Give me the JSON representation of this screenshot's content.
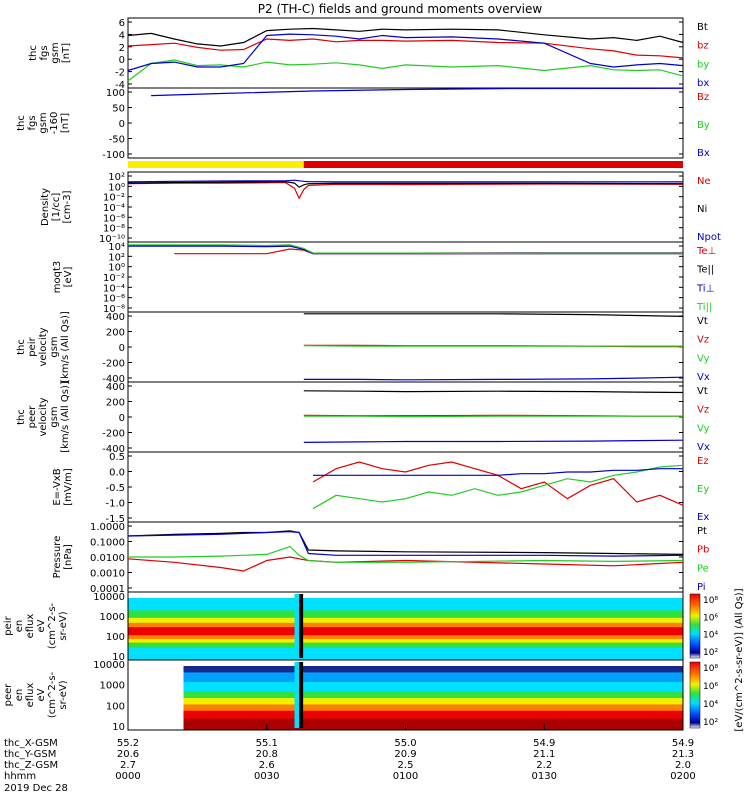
{
  "title": "P2 (TH-C) fields and ground moments overview",
  "date": "2019 Dec 28",
  "colors": {
    "black": "#000000",
    "red": "#dd0000",
    "green": "#22cc22",
    "blue": "#0000cc",
    "yellow": "#ffee00"
  },
  "xaxis": {
    "row_labels": [
      "thc_X-GSM",
      "thc_Y-GSM",
      "thc_Z-GSM",
      "hhmm"
    ],
    "ticks": [
      {
        "x": "55.2",
        "y": "20.6",
        "z": "2.7",
        "t": "0000"
      },
      {
        "x": "55.1",
        "y": "20.8",
        "z": "2.6",
        "t": "0030"
      },
      {
        "x": "55.0",
        "y": "20.9",
        "z": "2.5",
        "t": "0100"
      },
      {
        "x": "54.9",
        "y": "21.1",
        "z": "2.2",
        "t": "0130"
      },
      {
        "x": "54.9",
        "y": "21.3",
        "z": "2.0",
        "t": "0200"
      }
    ]
  },
  "mode_bar": {
    "yellow_until_hhmm": "0038",
    "red_after_hhmm": "0038"
  },
  "panels": [
    {
      "id": "fgs-gsm",
      "ylabel": [
        "thc",
        "fgs",
        "gsm",
        "[nT]"
      ],
      "yticks": [
        "6",
        "4",
        "2",
        "0",
        "-2",
        "-4"
      ],
      "legend": [
        {
          "text": "Bt",
          "color": "#000000"
        },
        {
          "text": "bz",
          "color": "#dd0000"
        },
        {
          "text": "by",
          "color": "#22cc22"
        },
        {
          "text": "bx",
          "color": "#0000cc"
        }
      ]
    },
    {
      "id": "fgs-gsm-160",
      "ylabel": [
        "thc",
        "fgs",
        "gsm",
        "-160",
        "[nT]"
      ],
      "yticks": [
        "100",
        "50",
        "0",
        "-50",
        "-100"
      ],
      "legend": [
        {
          "text": "Bz",
          "color": "#dd0000"
        },
        {
          "text": "By",
          "color": "#22cc22"
        },
        {
          "text": "Bx",
          "color": "#0000cc"
        }
      ]
    },
    {
      "id": "density",
      "ylabel": [
        "Density",
        "[1/cc]",
        "[cm-3]"
      ],
      "yticks": [
        "10²",
        "10⁰",
        "10⁻²",
        "10⁻⁴",
        "10⁻⁶",
        "10⁻⁸",
        "10⁻¹⁰"
      ],
      "legend": [
        {
          "text": "Ne",
          "color": "#dd0000"
        },
        {
          "text": "Ni",
          "color": "#000000"
        },
        {
          "text": "Npot",
          "color": "#0000cc"
        }
      ]
    },
    {
      "id": "temperature",
      "ylabel": [
        "moqt3",
        "[eV]"
      ],
      "yticks": [
        "10⁴",
        "10²",
        "10⁰",
        "10⁻²",
        "10⁻⁴",
        "10⁻⁶",
        "10⁻⁸"
      ],
      "legend": [
        {
          "text": "Te⊥",
          "color": "#dd0000"
        },
        {
          "text": "Te||",
          "color": "#000000"
        },
        {
          "text": "Ti⊥",
          "color": "#0000cc"
        },
        {
          "text": "Ti||",
          "color": "#22cc22"
        }
      ]
    },
    {
      "id": "peir-velocity",
      "ylabel": [
        "thc",
        "peir",
        "velocity",
        "gsm",
        "[km/s (All Qs)]"
      ],
      "yticks": [
        "400",
        "200",
        "0",
        "-200",
        "-400"
      ],
      "legend": [
        {
          "text": "Vt",
          "color": "#000000"
        },
        {
          "text": "Vz",
          "color": "#dd0000"
        },
        {
          "text": "Vy",
          "color": "#22cc22"
        },
        {
          "text": "Vx",
          "color": "#0000cc"
        }
      ]
    },
    {
      "id": "peer-velocity",
      "ylabel": [
        "thc",
        "peer",
        "velocity",
        "gsm",
        "[km/s (All Qs)]"
      ],
      "yticks": [
        "400",
        "200",
        "0",
        "-200",
        "-400"
      ],
      "legend": [
        {
          "text": "Vt",
          "color": "#000000"
        },
        {
          "text": "Vz",
          "color": "#dd0000"
        },
        {
          "text": "Vy",
          "color": "#22cc22"
        },
        {
          "text": "Vx",
          "color": "#0000cc"
        }
      ]
    },
    {
      "id": "efield",
      "ylabel": [
        "E=-VxB",
        "[mV/m]"
      ],
      "yticks": [
        "0.5",
        "0.0",
        "-0.5",
        "-1.0",
        "-1.5"
      ],
      "legend": [
        {
          "text": "Ez",
          "color": "#dd0000"
        },
        {
          "text": "Ey",
          "color": "#22cc22"
        },
        {
          "text": "Ex",
          "color": "#0000cc"
        }
      ]
    },
    {
      "id": "pressure",
      "ylabel": [
        "Pressure",
        "[nPa]"
      ],
      "yticks": [
        "1.0000",
        "0.1000",
        "0.0100",
        "0.0010",
        "0.0001"
      ],
      "legend": [
        {
          "text": "Pt",
          "color": "#000000"
        },
        {
          "text": "Pb",
          "color": "#dd0000"
        },
        {
          "text": "Pe",
          "color": "#22cc22"
        },
        {
          "text": "Pi",
          "color": "#0000cc"
        }
      ]
    },
    {
      "id": "peir-spectrogram",
      "ylabel": [
        "thc",
        "peir",
        "en",
        "eflux",
        "eV",
        "(cm^2-s-",
        "sr-eV)"
      ],
      "yticks": [
        "10000",
        "1000",
        "100",
        "10"
      ],
      "colorbar": [
        "10⁸",
        "10⁶",
        "10⁴",
        "10²"
      ]
    },
    {
      "id": "peer-spectrogram",
      "ylabel": [
        "thc",
        "peer",
        "en",
        "eflux",
        "eV",
        "(cm^2-s-",
        "sr-eV)"
      ],
      "yticks": [
        "10000",
        "1000",
        "100",
        "10"
      ],
      "colorbar": [
        "10⁸",
        "10⁶",
        "10⁴",
        "10²"
      ]
    }
  ],
  "colorbar_label": "[eV/(cm^2-s-sr-eV)] (All Qs)]",
  "chart_data": [
    {
      "type": "line",
      "id": "fgs-gsm",
      "x_unit": "hhmm",
      "ylim": [
        -4,
        6
      ],
      "x": [
        "0000",
        "0005",
        "0010",
        "0015",
        "0020",
        "0025",
        "0030",
        "0035",
        "0040",
        "0045",
        "0050",
        "0055",
        "0100",
        "0110",
        "0120",
        "0130",
        "0140",
        "0145",
        "0150",
        "0155",
        "0200"
      ],
      "series": [
        {
          "name": "Bt",
          "values": [
            3.5,
            3.8,
            3.0,
            2.3,
            2.0,
            2.5,
            4.2,
            4.4,
            4.5,
            4.3,
            4.1,
            4.4,
            4.3,
            4.4,
            4.3,
            3.6,
            3.0,
            3.2,
            2.8,
            3.4,
            2.5
          ]
        },
        {
          "name": "bz",
          "values": [
            2.0,
            2.2,
            2.4,
            1.8,
            1.4,
            1.5,
            3.0,
            2.8,
            3.0,
            2.6,
            2.8,
            2.8,
            2.7,
            2.8,
            2.5,
            2.4,
            1.6,
            1.3,
            0.7,
            0.6,
            0.3
          ]
        },
        {
          "name": "by",
          "values": [
            -3.0,
            -0.5,
            0.0,
            -0.8,
            -0.7,
            -1.0,
            -0.3,
            -0.7,
            -0.6,
            -0.4,
            -0.7,
            -1.2,
            -0.7,
            -1.0,
            -0.8,
            -1.5,
            -0.8,
            -1.4,
            -1.5,
            -1.4,
            -2.3
          ]
        },
        {
          "name": "bx",
          "values": [
            -1.5,
            -0.5,
            -0.3,
            -1.0,
            -1.0,
            -0.5,
            3.5,
            3.7,
            3.6,
            3.4,
            3.0,
            3.5,
            3.2,
            3.3,
            3.0,
            2.4,
            -0.5,
            -1.0,
            -0.7,
            -0.5,
            -0.8
          ]
        }
      ]
    },
    {
      "type": "line",
      "id": "fgs-gsm-160",
      "x_unit": "hhmm",
      "ylim": [
        -130,
        100
      ],
      "x": [
        "0005",
        "0020",
        "0040",
        "0100",
        "0120",
        "0200"
      ],
      "series": [
        {
          "name": "Bx",
          "values": [
            75,
            82,
            90,
            95,
            98,
            99
          ]
        }
      ]
    },
    {
      "type": "line",
      "id": "density",
      "x_unit": "hhmm",
      "ylim": [
        -10,
        2
      ],
      "y_scale": "log10",
      "x": [
        "0000",
        "0010",
        "0020",
        "0030",
        "0034",
        "0036",
        "0037",
        "0038",
        "0039",
        "0045",
        "0100",
        "0130",
        "0200"
      ],
      "series": [
        {
          "name": "Ne",
          "values": [
            0.0,
            0.1,
            0.1,
            0.15,
            0.2,
            -0.8,
            -2.5,
            -1.0,
            -0.3,
            -0.1,
            -0.15,
            -0.05,
            -0.1
          ]
        },
        {
          "name": "Ni",
          "values": [
            0.1,
            0.2,
            0.25,
            0.3,
            0.35,
            0.1,
            -0.6,
            -0.2,
            0.0,
            0.05,
            0.05,
            0.05,
            0.0
          ]
        },
        {
          "name": "Npot",
          "values": [
            0.3,
            0.4,
            0.45,
            0.5,
            0.5,
            0.6,
            0.5,
            0.4,
            0.35,
            0.3,
            0.3,
            0.3,
            0.3
          ]
        }
      ]
    },
    {
      "type": "line",
      "id": "temperature",
      "x_unit": "hhmm",
      "ylim": [
        -8,
        4
      ],
      "y_scale": "log10",
      "x": [
        "0000",
        "0010",
        "0020",
        "0030",
        "0035",
        "0038",
        "0040",
        "0050",
        "0100",
        "0130",
        "0200"
      ],
      "series": [
        {
          "name": "Te⊥",
          "values": [
            null,
            2.0,
            2.0,
            2.0,
            2.8,
            2.6,
            2.0,
            2.0,
            2.0,
            2.0,
            2.0
          ]
        },
        {
          "name": "Te||",
          "values": [
            3.4,
            3.4,
            3.4,
            3.3,
            3.4,
            2.8,
            2.1,
            2.1,
            2.1,
            2.1,
            2.1
          ]
        },
        {
          "name": "Ti⊥",
          "values": [
            3.3,
            3.3,
            3.3,
            3.2,
            3.3,
            2.7,
            2.0,
            2.0,
            2.0,
            2.0,
            2.0
          ]
        },
        {
          "name": "Ti||",
          "values": [
            3.5,
            3.5,
            3.5,
            3.4,
            3.5,
            2.9,
            2.1,
            2.1,
            2.1,
            2.0,
            2.0
          ]
        }
      ]
    },
    {
      "type": "line",
      "id": "peir-velocity",
      "x_unit": "hhmm",
      "ylim": [
        -400,
        400
      ],
      "x": [
        "0038",
        "0050",
        "0100",
        "0120",
        "0140",
        "0150",
        "0200"
      ],
      "series": [
        {
          "name": "Vt",
          "values": [
            380,
            380,
            380,
            380,
            370,
            360,
            350
          ]
        },
        {
          "name": "Vz",
          "values": [
            20,
            20,
            15,
            15,
            10,
            5,
            5
          ]
        },
        {
          "name": "Vy",
          "values": [
            15,
            10,
            10,
            10,
            10,
            10,
            10
          ]
        },
        {
          "name": "Vx",
          "values": [
            -370,
            -370,
            -375,
            -370,
            -365,
            -355,
            -345
          ]
        }
      ]
    },
    {
      "type": "line",
      "id": "peer-velocity",
      "x_unit": "hhmm",
      "ylim": [
        -400,
        400
      ],
      "x": [
        "0038",
        "0050",
        "0100",
        "0120",
        "0140",
        "0150",
        "0200"
      ],
      "series": [
        {
          "name": "Vt",
          "values": [
            300,
            295,
            290,
            295,
            290,
            285,
            280
          ]
        },
        {
          "name": "Vz",
          "values": [
            20,
            15,
            15,
            20,
            15,
            10,
            10
          ]
        },
        {
          "name": "Vy",
          "values": [
            10,
            10,
            5,
            10,
            10,
            10,
            10
          ]
        },
        {
          "name": "Vx",
          "values": [
            -290,
            -285,
            -280,
            -280,
            -275,
            -270,
            -265
          ]
        }
      ]
    },
    {
      "type": "line",
      "id": "efield",
      "x_unit": "hhmm",
      "ylim": [
        -1.5,
        0.6
      ],
      "x": [
        "0040",
        "0045",
        "0050",
        "0055",
        "0100",
        "0105",
        "0110",
        "0115",
        "0120",
        "0125",
        "0130",
        "0135",
        "0140",
        "0145",
        "0150",
        "0155",
        "0200"
      ],
      "series": [
        {
          "name": "Ez",
          "values": [
            -0.3,
            0.1,
            0.3,
            0.1,
            0.0,
            0.2,
            0.3,
            0.1,
            -0.1,
            -0.5,
            -0.3,
            -0.8,
            -0.4,
            -0.2,
            -0.9,
            -0.7,
            -1.0
          ]
        },
        {
          "name": "Ey",
          "values": [
            -1.1,
            -0.7,
            -0.8,
            -0.9,
            -0.8,
            -0.6,
            -0.7,
            -0.5,
            -0.7,
            -0.6,
            -0.4,
            -0.2,
            -0.3,
            -0.1,
            0.0,
            0.15,
            0.2
          ]
        },
        {
          "name": "Ex",
          "values": [
            -0.1,
            -0.1,
            -0.1,
            -0.1,
            -0.1,
            -0.1,
            -0.1,
            -0.1,
            -0.1,
            -0.05,
            -0.05,
            0.0,
            0.0,
            0.05,
            0.05,
            0.1,
            0.1
          ]
        }
      ]
    },
    {
      "type": "line",
      "id": "pressure",
      "x_unit": "hhmm",
      "ylim": [
        -4,
        0
      ],
      "y_scale": "log10",
      "x": [
        "0000",
        "0010",
        "0020",
        "0025",
        "0030",
        "0035",
        "0037",
        "0039",
        "0045",
        "0100",
        "0130",
        "0145",
        "0200"
      ],
      "series": [
        {
          "name": "Pt",
          "values": [
            -0.8,
            -0.7,
            -0.65,
            -0.6,
            -0.6,
            -0.5,
            -0.6,
            -1.6,
            -1.65,
            -1.7,
            -1.75,
            -1.8,
            -1.85
          ]
        },
        {
          "name": "Pb",
          "values": [
            -2.1,
            -2.3,
            -2.6,
            -2.8,
            -2.2,
            -2.0,
            -2.1,
            -2.2,
            -2.3,
            -2.2,
            -2.4,
            -2.5,
            -2.3
          ]
        },
        {
          "name": "Pe",
          "values": [
            -2.0,
            -2.0,
            -1.95,
            -1.9,
            -1.85,
            -1.4,
            -1.9,
            -2.2,
            -2.3,
            -2.3,
            -2.2,
            -2.25,
            -2.2
          ]
        },
        {
          "name": "Pi",
          "values": [
            -0.8,
            -0.75,
            -0.7,
            -0.65,
            -0.6,
            -0.55,
            -0.6,
            -1.8,
            -1.9,
            -1.9,
            -1.9,
            -1.95,
            -1.9
          ]
        }
      ]
    },
    {
      "type": "heatmap",
      "id": "peir-spectrogram",
      "x_unit": "hhmm",
      "y_unit": "eV",
      "ylim": [
        5,
        25000
      ],
      "y_scale": "log10",
      "zlim_log10": [
        2,
        8
      ]
    },
    {
      "type": "heatmap",
      "id": "peer-spectrogram",
      "x_unit": "hhmm",
      "y_unit": "eV",
      "ylim": [
        5,
        25000
      ],
      "y_scale": "log10",
      "zlim_log10": [
        2,
        8
      ]
    }
  ]
}
